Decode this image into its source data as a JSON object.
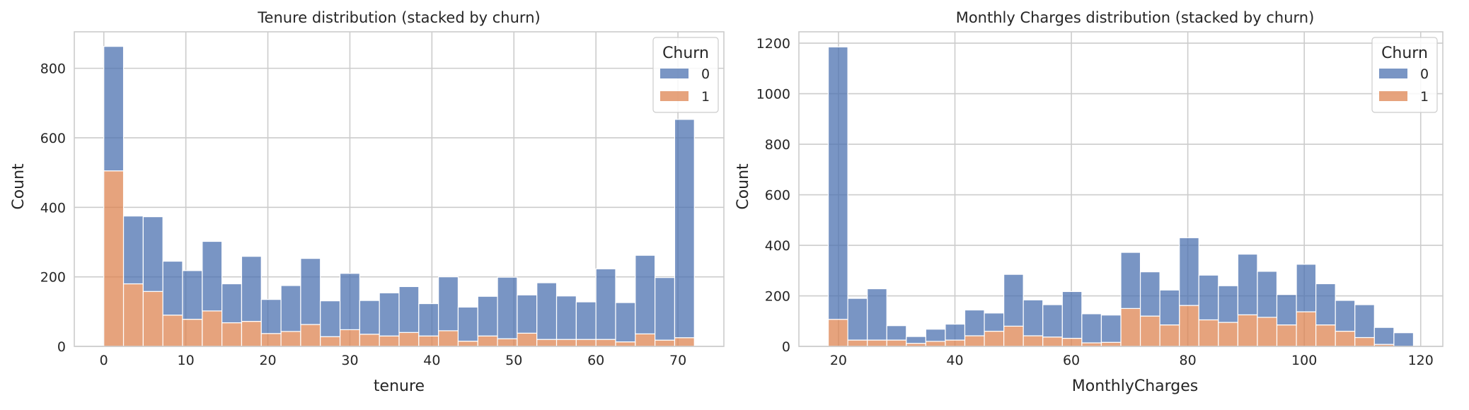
{
  "chart_data": [
    {
      "type": "bar",
      "stacked": true,
      "title": "Tenure distribution (stacked by churn)",
      "xlabel": "tenure",
      "ylabel": "Count",
      "xlim": [
        -3.6,
        75.6
      ],
      "ylim": [
        0,
        905
      ],
      "xticks": [
        0,
        10,
        20,
        30,
        40,
        50,
        60,
        70
      ],
      "yticks": [
        0,
        200,
        400,
        600,
        800
      ],
      "grid": true,
      "legend": {
        "title": "Churn",
        "placement": "top-right"
      },
      "bin_edges": [
        0,
        2.4,
        4.8,
        7.2,
        9.6,
        12,
        14.4,
        16.8,
        19.2,
        21.6,
        24,
        26.4,
        28.8,
        31.2,
        33.6,
        36,
        38.4,
        40.8,
        43.2,
        45.6,
        48,
        50.4,
        52.8,
        55.2,
        57.6,
        60,
        62.4,
        64.8,
        67.2,
        69.6,
        72
      ],
      "series": [
        {
          "name": "0",
          "color": "#4c72b0",
          "values": [
            358,
            195,
            215,
            155,
            140,
            200,
            112,
            187,
            98,
            132,
            190,
            103,
            162,
            97,
            124,
            132,
            93,
            155,
            98,
            114,
            177,
            110,
            163,
            125,
            108,
            203,
            113,
            226,
            180,
            628
          ]
        },
        {
          "name": "1",
          "color": "#dd8452",
          "values": [
            505,
            180,
            158,
            90,
            78,
            102,
            68,
            72,
            37,
            43,
            63,
            28,
            48,
            35,
            30,
            40,
            30,
            45,
            15,
            30,
            22,
            38,
            20,
            20,
            20,
            20,
            13,
            36,
            18,
            25
          ]
        }
      ]
    },
    {
      "type": "bar",
      "stacked": true,
      "title": "Monthly Charges distribution (stacked by churn)",
      "xlabel": "MonthlyCharges",
      "ylabel": "Count",
      "xlim": [
        13.2,
        123.8
      ],
      "ylim": [
        0,
        1245
      ],
      "xticks": [
        20,
        40,
        60,
        80,
        100,
        120
      ],
      "yticks": [
        0,
        200,
        400,
        600,
        800,
        1000,
        1200
      ],
      "grid": true,
      "legend": {
        "title": "Churn",
        "placement": "top-right"
      },
      "bin_edges": [
        18.25,
        21.6,
        24.95,
        28.3,
        31.65,
        35,
        38.35,
        41.7,
        45.05,
        48.4,
        51.75,
        55.1,
        58.45,
        61.8,
        65.15,
        68.5,
        71.85,
        75.2,
        78.55,
        81.9,
        85.25,
        88.6,
        91.95,
        95.3,
        98.65,
        102,
        105.35,
        108.7,
        112.05,
        115.4,
        118.75
      ],
      "series": [
        {
          "name": "0",
          "color": "#4c72b0",
          "values": [
            1078,
            165,
            203,
            57,
            27,
            48,
            63,
            102,
            72,
            205,
            142,
            128,
            185,
            115,
            108,
            222,
            175,
            138,
            268,
            177,
            145,
            240,
            182,
            120,
            188,
            163,
            122,
            130,
            67,
            54
          ]
        },
        {
          "name": "1",
          "color": "#dd8452",
          "values": [
            107,
            25,
            25,
            25,
            12,
            20,
            25,
            42,
            60,
            80,
            42,
            37,
            32,
            14,
            16,
            150,
            120,
            85,
            162,
            105,
            95,
            125,
            115,
            85,
            137,
            85,
            60,
            35,
            8,
            0
          ]
        }
      ]
    }
  ]
}
